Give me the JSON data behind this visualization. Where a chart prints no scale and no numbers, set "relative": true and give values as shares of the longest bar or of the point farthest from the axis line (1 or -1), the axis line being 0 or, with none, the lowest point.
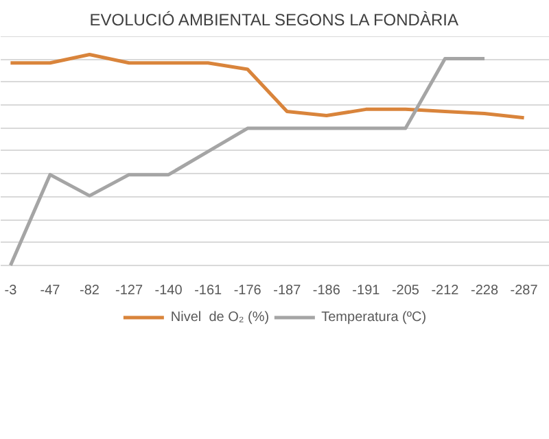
{
  "chart_data": {
    "type": "line",
    "title": "EVOLUCIÓ AMBIENTAL SEGONS LA FONDÀRIA",
    "relative": true,
    "grid": "y",
    "legend": "bottom",
    "categories": [
      "-3",
      "-47",
      "-82",
      "-127",
      "-140",
      "-161",
      "-176",
      "-187",
      "-186",
      "-191",
      "-205",
      "-212",
      "-228",
      "-287"
    ],
    "series": [
      {
        "name": "Nivel  de O₂ (%)",
        "color": "#d9843b",
        "values": [
          0.96,
          0.96,
          1.0,
          0.96,
          0.96,
          0.96,
          0.93,
          0.73,
          0.71,
          0.74,
          0.74,
          0.73,
          0.72,
          0.7
        ]
      },
      {
        "name": "Temperatura (ºC)",
        "color": "#a5a5a5",
        "values": [
          0,
          0.43,
          0.33,
          0.43,
          0.43,
          0.54,
          0.65,
          0.65,
          0.65,
          0.65,
          0.65,
          0.98,
          0.98,
          null
        ]
      }
    ]
  }
}
